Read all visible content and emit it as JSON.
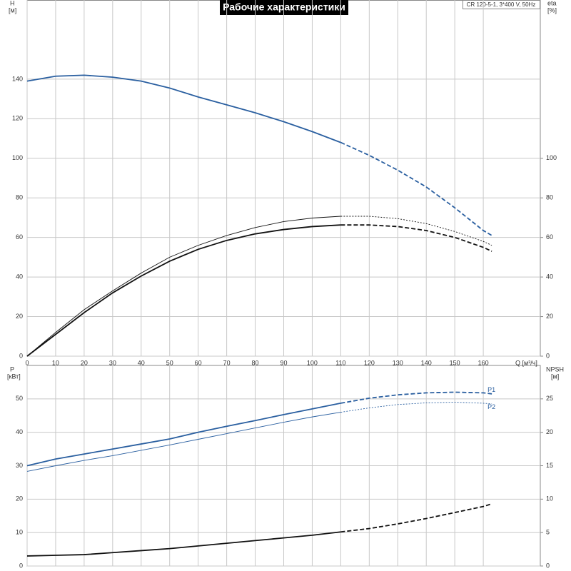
{
  "chart_data": [
    {
      "type": "line",
      "title": "Рабочие характеристики",
      "subtitle": "CR 120-5-1, 3*400 V, 50Hz",
      "ylabel": "H",
      "yunit": "[м]",
      "y2label": "eta",
      "y2unit": "[%]",
      "xlabel": "Q [м³/ч]",
      "x": [
        0,
        10,
        20,
        30,
        40,
        50,
        60,
        70,
        80,
        90,
        100,
        110,
        120,
        130,
        140,
        150,
        160,
        163
      ],
      "xlim": [
        0,
        180
      ],
      "xticks": [
        0,
        10,
        20,
        30,
        40,
        50,
        60,
        70,
        80,
        90,
        100,
        110,
        120,
        130,
        140,
        150,
        160
      ],
      "ylim": [
        0,
        180
      ],
      "yticks": [
        0,
        20,
        40,
        60,
        80,
        100,
        120,
        140
      ],
      "y2lim": [
        0,
        180
      ],
      "y2ticks": [
        0,
        20,
        40,
        60,
        80,
        100
      ],
      "grid": true,
      "dash_from": 110,
      "series": [
        {
          "color": "#2a5fa0",
          "width": 1.8,
          "values": [
            139,
            141.5,
            142,
            141,
            139,
            135.5,
            131,
            127,
            123,
            118.5,
            113.5,
            108,
            101.5,
            94,
            85.5,
            75,
            63.5,
            61
          ]
        },
        {
          "color": "#111111",
          "width": 0.9,
          "axis": "y2",
          "values": [
            0,
            12,
            23.5,
            33,
            42,
            50,
            56,
            61,
            65,
            68,
            69.8,
            70.7,
            70.7,
            69.5,
            67,
            63,
            58,
            56
          ]
        },
        {
          "color": "#111111",
          "width": 1.8,
          "axis": "y2",
          "values": [
            0,
            11,
            22,
            32,
            40.5,
            48,
            54,
            58.5,
            61.8,
            64,
            65.5,
            66.3,
            66.3,
            65.5,
            63.5,
            60,
            55,
            53
          ]
        }
      ]
    },
    {
      "type": "line",
      "ylabel": "P",
      "yunit": "[кВт]",
      "y2label": "NPSH",
      "y2unit": "[м]",
      "x": [
        0,
        10,
        20,
        30,
        40,
        50,
        60,
        70,
        80,
        90,
        100,
        110,
        120,
        130,
        140,
        150,
        160,
        163
      ],
      "xlim": [
        0,
        180
      ],
      "ylim": [
        0,
        60
      ],
      "yticks": [
        0,
        10,
        20,
        30,
        40,
        50
      ],
      "y2lim": [
        0,
        30
      ],
      "y2ticks": [
        0,
        5,
        10,
        15,
        20,
        25
      ],
      "grid": true,
      "dash_from": 110,
      "series": [
        {
          "name": "P1",
          "color": "#2a5fa0",
          "width": 1.8,
          "values": [
            30,
            32,
            33.5,
            35,
            36.5,
            38,
            40,
            41.8,
            43.5,
            45.3,
            47,
            48.7,
            50.2,
            51.2,
            51.8,
            52,
            51.8,
            51.5
          ]
        },
        {
          "name": "P2",
          "color": "#2a5fa0",
          "width": 0.9,
          "values": [
            28.3,
            30,
            31.6,
            33,
            34.6,
            36.2,
            37.9,
            39.6,
            41.3,
            43,
            44.6,
            46,
            47.3,
            48.3,
            48.8,
            49,
            48.7,
            48.5
          ]
        },
        {
          "color": "#111111",
          "width": 1.8,
          "axis": "y2",
          "values": [
            1.5,
            1.6,
            1.7,
            2,
            2.3,
            2.6,
            3,
            3.4,
            3.8,
            4.2,
            4.6,
            5.1,
            5.6,
            6.3,
            7.1,
            8,
            8.9,
            9.3
          ]
        }
      ]
    }
  ]
}
